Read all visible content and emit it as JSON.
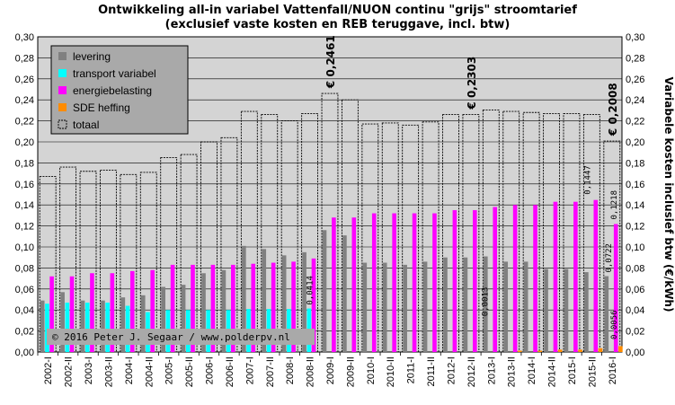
{
  "chart_data": {
    "type": "bar",
    "title": "Ontwikkeling  all-in variabel Vattenfall/NUON  continu \"grijs\"  stroomtarief",
    "subtitle": "(exclusief vaste kosten en REB teruggave, incl. btw)",
    "ylabel_right": "Variabele kosten inclusief btw (€/kWh)",
    "ylim": [
      0,
      0.3
    ],
    "ytick_labels": [
      "0,00",
      "0,02",
      "0,04",
      "0,06",
      "0,08",
      "0,10",
      "0,12",
      "0,14",
      "0,16",
      "0,18",
      "0,20",
      "0,22",
      "0,24",
      "0,26",
      "0,28",
      "0,30"
    ],
    "categories": [
      "2002-I",
      "2002-II",
      "2003-I",
      "2003-II",
      "2004-I",
      "2004-II",
      "2005-I",
      "2005-II",
      "2006-I",
      "2006-II",
      "2007-I",
      "2007-II",
      "2008-I",
      "2008-II",
      "2009-I",
      "2009-II",
      "2010-I",
      "2010-II",
      "2011-I",
      "2011-II",
      "2012-I",
      "2012-II",
      "2013-I",
      "2013-II",
      "2014-I",
      "2014-II",
      "2015-I",
      "2015-II",
      "2016-I"
    ],
    "series": [
      {
        "name": "levering",
        "color": "#808080",
        "values": [
          0.049,
          0.057,
          0.049,
          0.049,
          0.052,
          0.054,
          0.062,
          0.064,
          0.075,
          0.078,
          0.101,
          0.098,
          0.092,
          0.095,
          0.116,
          0.111,
          0.085,
          0.085,
          0.083,
          0.086,
          0.09,
          0.09,
          0.091,
          0.086,
          0.086,
          0.079,
          0.079,
          0.076,
          0.0722
        ]
      },
      {
        "name": "transport variabel",
        "color": "#00ffff",
        "values": [
          0.046,
          0.047,
          0.047,
          0.047,
          0.044,
          0.038,
          0.04,
          0.04,
          0.04,
          0.04,
          0.041,
          0.041,
          0.041,
          0.0414,
          0,
          0,
          0,
          0,
          0,
          0,
          0,
          0,
          0,
          0,
          0,
          0,
          0,
          0,
          0
        ]
      },
      {
        "name": "energiebelasting",
        "color": "#ff00ff",
        "values": [
          0.072,
          0.072,
          0.075,
          0.075,
          0.077,
          0.078,
          0.083,
          0.083,
          0.083,
          0.083,
          0.084,
          0.085,
          0.086,
          0.089,
          0.128,
          0.128,
          0.132,
          0.132,
          0.132,
          0.132,
          0.135,
          0.135,
          0.138,
          0.14,
          0.14,
          0.143,
          0.143,
          0.1447,
          0.1218
        ]
      },
      {
        "name": "SDE heffing",
        "color": "#ff8c00",
        "values": [
          0,
          0,
          0,
          0,
          0,
          0,
          0,
          0,
          0,
          0,
          0,
          0,
          0,
          0,
          0,
          0,
          0,
          0,
          0,
          0,
          0,
          0,
          0,
          0.0013,
          0.0013,
          0.0023,
          0.0023,
          0.0036,
          0.0056
        ]
      },
      {
        "name": "totaal",
        "color": "#000000",
        "values": [
          0.167,
          0.176,
          0.172,
          0.173,
          0.169,
          0.171,
          0.185,
          0.188,
          0.2,
          0.204,
          0.229,
          0.226,
          0.22,
          0.227,
          0.2461,
          0.24,
          0.217,
          0.218,
          0.216,
          0.219,
          0.226,
          0.226,
          0.2303,
          0.229,
          0.228,
          0.227,
          0.227,
          0.226,
          0.2008
        ]
      }
    ],
    "annotations": [
      {
        "text": "€ 0,2461",
        "category": "2009-I"
      },
      {
        "text": "€ 0,2303",
        "category": "2012-II"
      },
      {
        "text": "€ 0,2008",
        "category": "2016-I"
      },
      {
        "text": "0,0414",
        "category": "2008-II"
      },
      {
        "text": "0,0013",
        "category": "2013-I"
      },
      {
        "text": "0,1447",
        "category": "2015-II"
      },
      {
        "text": "0,1218",
        "category": "2016-I"
      },
      {
        "text": "0,0722",
        "category": "2016-I"
      },
      {
        "text": "0,0056",
        "category": "2016-I"
      }
    ],
    "legend_position": "top-left",
    "grid": true
  },
  "copyright": "© 2016  Peter J. Segaar / www.polderpv.nl"
}
